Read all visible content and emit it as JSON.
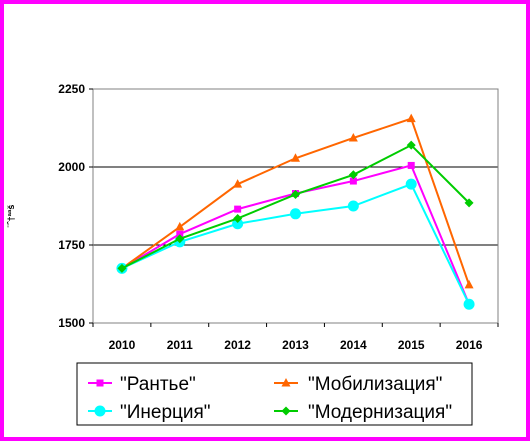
{
  "chart_data": {
    "type": "line",
    "x": [
      "2010",
      "2011",
      "2012",
      "2013",
      "2014",
      "2015",
      "2016"
    ],
    "ylabel": "¨ˆ†ªªš",
    "ylim": [
      1500,
      2250
    ],
    "yticks": [
      "1500",
      "1750",
      "2000",
      "2250"
    ],
    "gridlines": [
      1750,
      2000,
      2250
    ],
    "legend_position": "bottom",
    "series": [
      {
        "name": "\"Рантье\"",
        "color": "#ff00ff",
        "marker": "square",
        "values": [
          1675,
          1785,
          1865,
          1915,
          1955,
          2005,
          1560
        ]
      },
      {
        "name": "\"Мобилизация\"",
        "color": "#ff6600",
        "marker": "triangle",
        "values": [
          1675,
          1808,
          1945,
          2028,
          2093,
          2155,
          1622
        ]
      },
      {
        "name": "\"Инерция\"",
        "color": "#00ffff",
        "marker": "circle",
        "values": [
          1675,
          1760,
          1818,
          1850,
          1875,
          1945,
          1560
        ]
      },
      {
        "name": "\"Модернизация\"",
        "color": "#00cc00",
        "marker": "diamond",
        "values": [
          1675,
          1770,
          1835,
          1912,
          1975,
          2070,
          1885
        ]
      }
    ]
  }
}
